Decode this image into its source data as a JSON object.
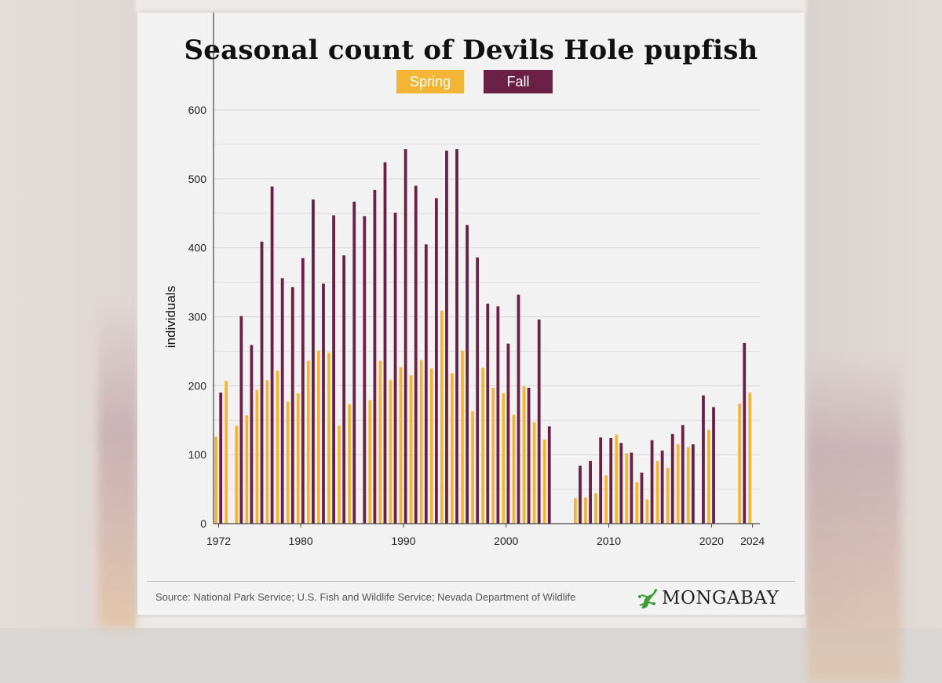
{
  "colors": {
    "spring": "#f2b536",
    "fall": "#6b2146",
    "grid": "#d6d6d6",
    "axis": "#333333"
  },
  "chart_data": {
    "type": "bar",
    "title": "Seasonal count of Devils Hole pupfish",
    "ylabel": "individuals",
    "xlabel": "",
    "ylim": [
      0,
      600
    ],
    "yticks": [
      0,
      100,
      200,
      300,
      400,
      500,
      600
    ],
    "xticks": [
      1972,
      1980,
      1990,
      2000,
      2010,
      2020,
      2024
    ],
    "legend": {
      "position": "top-center",
      "entries": [
        "Spring",
        "Fall"
      ]
    },
    "x": [
      1972,
      1973,
      1974,
      1975,
      1976,
      1977,
      1978,
      1979,
      1980,
      1981,
      1982,
      1983,
      1984,
      1985,
      1986,
      1987,
      1988,
      1989,
      1990,
      1991,
      1992,
      1993,
      1994,
      1995,
      1996,
      1997,
      1998,
      1999,
      2000,
      2001,
      2002,
      2003,
      2004,
      2005,
      2006,
      2007,
      2008,
      2009,
      2010,
      2011,
      2012,
      2013,
      2014,
      2015,
      2016,
      2017,
      2018,
      2019,
      2020,
      2021,
      2022,
      2023,
      2024
    ],
    "series": [
      {
        "name": "Spring",
        "values": [
          126,
          207,
          142,
          157,
          194,
          208,
          222,
          177,
          189,
          236,
          251,
          248,
          142,
          173,
          null,
          179,
          236,
          208,
          227,
          215,
          237,
          225,
          309,
          218,
          251,
          163,
          226,
          197,
          189,
          158,
          199,
          147,
          122,
          null,
          null,
          37,
          38,
          44,
          70,
          129,
          102,
          60,
          35,
          91,
          81,
          115,
          111,
          null,
          136,
          null,
          null,
          174,
          190
        ]
      },
      {
        "name": "Fall",
        "values": [
          190,
          null,
          301,
          259,
          409,
          489,
          356,
          343,
          385,
          470,
          348,
          447,
          389,
          467,
          446,
          484,
          524,
          451,
          543,
          490,
          405,
          472,
          541,
          543,
          433,
          386,
          319,
          315,
          261,
          332,
          197,
          296,
          141,
          null,
          null,
          84,
          91,
          125,
          124,
          117,
          103,
          74,
          121,
          106,
          130,
          143,
          115,
          186,
          169,
          null,
          null,
          262,
          null
        ]
      }
    ]
  },
  "footer": {
    "source": "Source: National Park Service; U.S. Fish and Wildlife Service; Nevada Department of Wildlife",
    "brand": "MONGABAY"
  }
}
